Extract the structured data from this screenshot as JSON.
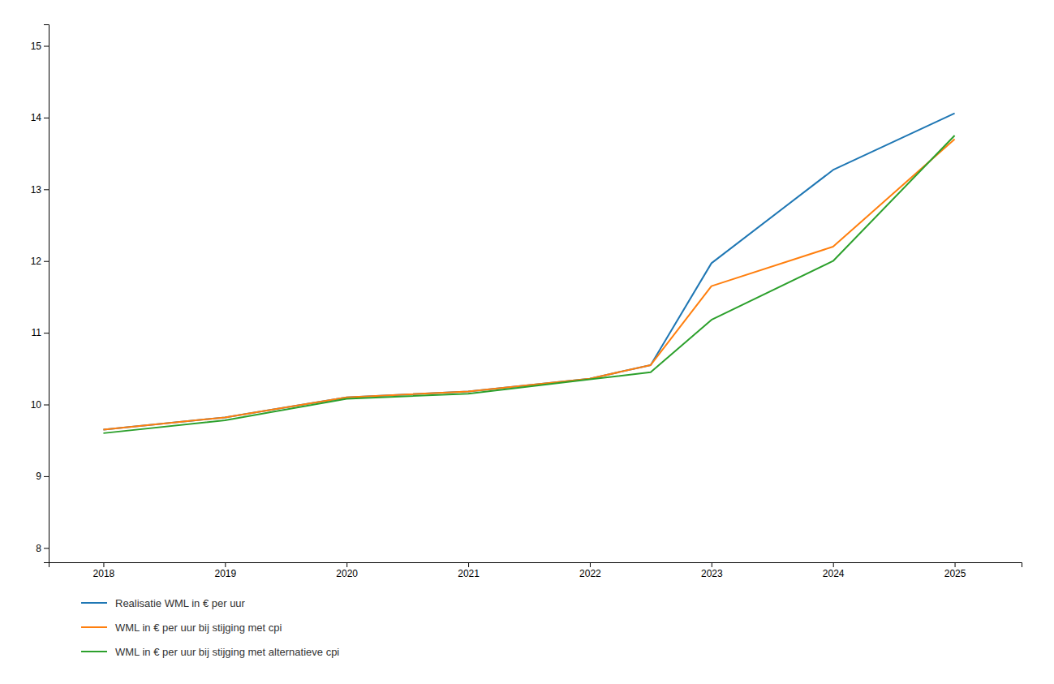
{
  "chart_data": {
    "type": "line",
    "x": [
      2018,
      2019,
      2020,
      2021,
      2022,
      2022.5,
      2023,
      2024,
      2025
    ],
    "series": [
      {
        "name": "Realisatie WML in € per uur",
        "values": [
          9.65,
          9.82,
          10.1,
          10.18,
          10.36,
          10.55,
          11.97,
          13.27,
          14.06
        ]
      },
      {
        "name": "WML in € per uur bij stijging met cpi",
        "values": [
          9.65,
          9.82,
          10.1,
          10.18,
          10.36,
          10.55,
          11.65,
          12.2,
          13.7
        ]
      },
      {
        "name": "WML in € per uur bij stijging met alternatieve cpi",
        "values": [
          9.6,
          9.78,
          10.08,
          10.15,
          10.35,
          10.45,
          11.18,
          12.0,
          13.75
        ]
      }
    ],
    "xlim": [
      2017.55,
      2025.55
    ],
    "ylim": [
      7.8,
      15.3
    ],
    "xticks": [
      2018,
      2019,
      2020,
      2021,
      2022,
      2023,
      2024,
      2025
    ],
    "yticks": [
      8,
      9,
      10,
      11,
      12,
      13,
      14,
      15
    ],
    "grid": false,
    "legend": "bottom"
  }
}
